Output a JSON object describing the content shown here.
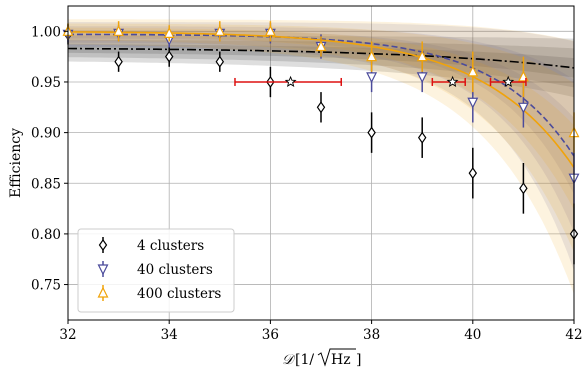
{
  "chart_data": {
    "type": "scatter",
    "ylabel": "Efficiency",
    "xlabel_parts": {
      "symbol": "𝒟",
      "unit_prefix": "[1/",
      "radicand": "Hz",
      "unit_suffix": "]"
    },
    "xlim": [
      32,
      42
    ],
    "ylim": [
      0.715,
      1.025
    ],
    "xticks": [
      "32",
      "34",
      "36",
      "38",
      "40",
      "42"
    ],
    "yticks": [
      "0.75",
      "0.80",
      "0.85",
      "0.90",
      "0.95",
      "1.00"
    ],
    "grid": true,
    "legend_position": "lower-left",
    "series": [
      {
        "name": "4 clusters",
        "color": "#000000",
        "marker": "diamond",
        "x": [
          32,
          33,
          34,
          35,
          36,
          37,
          38,
          39,
          40,
          41,
          42
        ],
        "y": [
          0.997,
          0.97,
          0.975,
          0.97,
          0.95,
          0.925,
          0.9,
          0.895,
          0.86,
          0.845,
          0.8
        ],
        "yerr": [
          0.01,
          0.01,
          0.01,
          0.01,
          0.015,
          0.015,
          0.02,
          0.02,
          0.025,
          0.025,
          0.03
        ],
        "fit": {
          "style": "dashdot",
          "a": 0.001,
          "b": 0.3,
          "c": 0.984,
          "band_color": "#000000"
        }
      },
      {
        "name": "40 clusters",
        "color": "#4b4b9b",
        "marker": "triangle-down",
        "x": [
          32,
          33,
          34,
          35,
          36,
          37,
          38,
          39,
          40,
          41,
          42
        ],
        "y": [
          0.997,
          0.998,
          0.992,
          0.998,
          0.998,
          0.985,
          0.955,
          0.955,
          0.93,
          0.925,
          0.855
        ],
        "yerr": [
          0.008,
          0.008,
          0.008,
          0.008,
          0.01,
          0.012,
          0.015,
          0.015,
          0.02,
          0.02,
          0.025
        ],
        "fit": {
          "style": "dashed",
          "a": 0.0002,
          "b": 0.64,
          "c": 0.9972,
          "band_color": "#4b4b9b"
        }
      },
      {
        "name": "400 clusters",
        "color": "#f0a30a",
        "marker": "triangle-up",
        "x": [
          32,
          33,
          34,
          35,
          36,
          37,
          38,
          39,
          40,
          41,
          42
        ],
        "y": [
          1.0,
          1.0,
          0.998,
          1.0,
          1.0,
          0.985,
          0.975,
          0.975,
          0.96,
          0.955,
          0.9
        ],
        "yerr": [
          0.008,
          0.01,
          0.008,
          0.01,
          0.01,
          0.01,
          0.015,
          0.015,
          0.02,
          0.02,
          0.02
        ],
        "fit": {
          "style": "solid",
          "a": 0.00055,
          "b": 0.55,
          "c": 1.0,
          "band_color": "#f0a30a"
        }
      }
    ],
    "threshold_points": [
      {
        "x": 36.4,
        "y": 0.95,
        "xerr_low": 1.1,
        "xerr_high": 1.0,
        "color": "#dd1111"
      },
      {
        "x": 39.6,
        "y": 0.95,
        "xerr_low": 0.4,
        "xerr_high": 0.25,
        "color": "#dd1111"
      },
      {
        "x": 40.7,
        "y": 0.95,
        "xerr_low": 0.35,
        "xerr_high": 0.35,
        "color": "#dd1111"
      }
    ]
  }
}
